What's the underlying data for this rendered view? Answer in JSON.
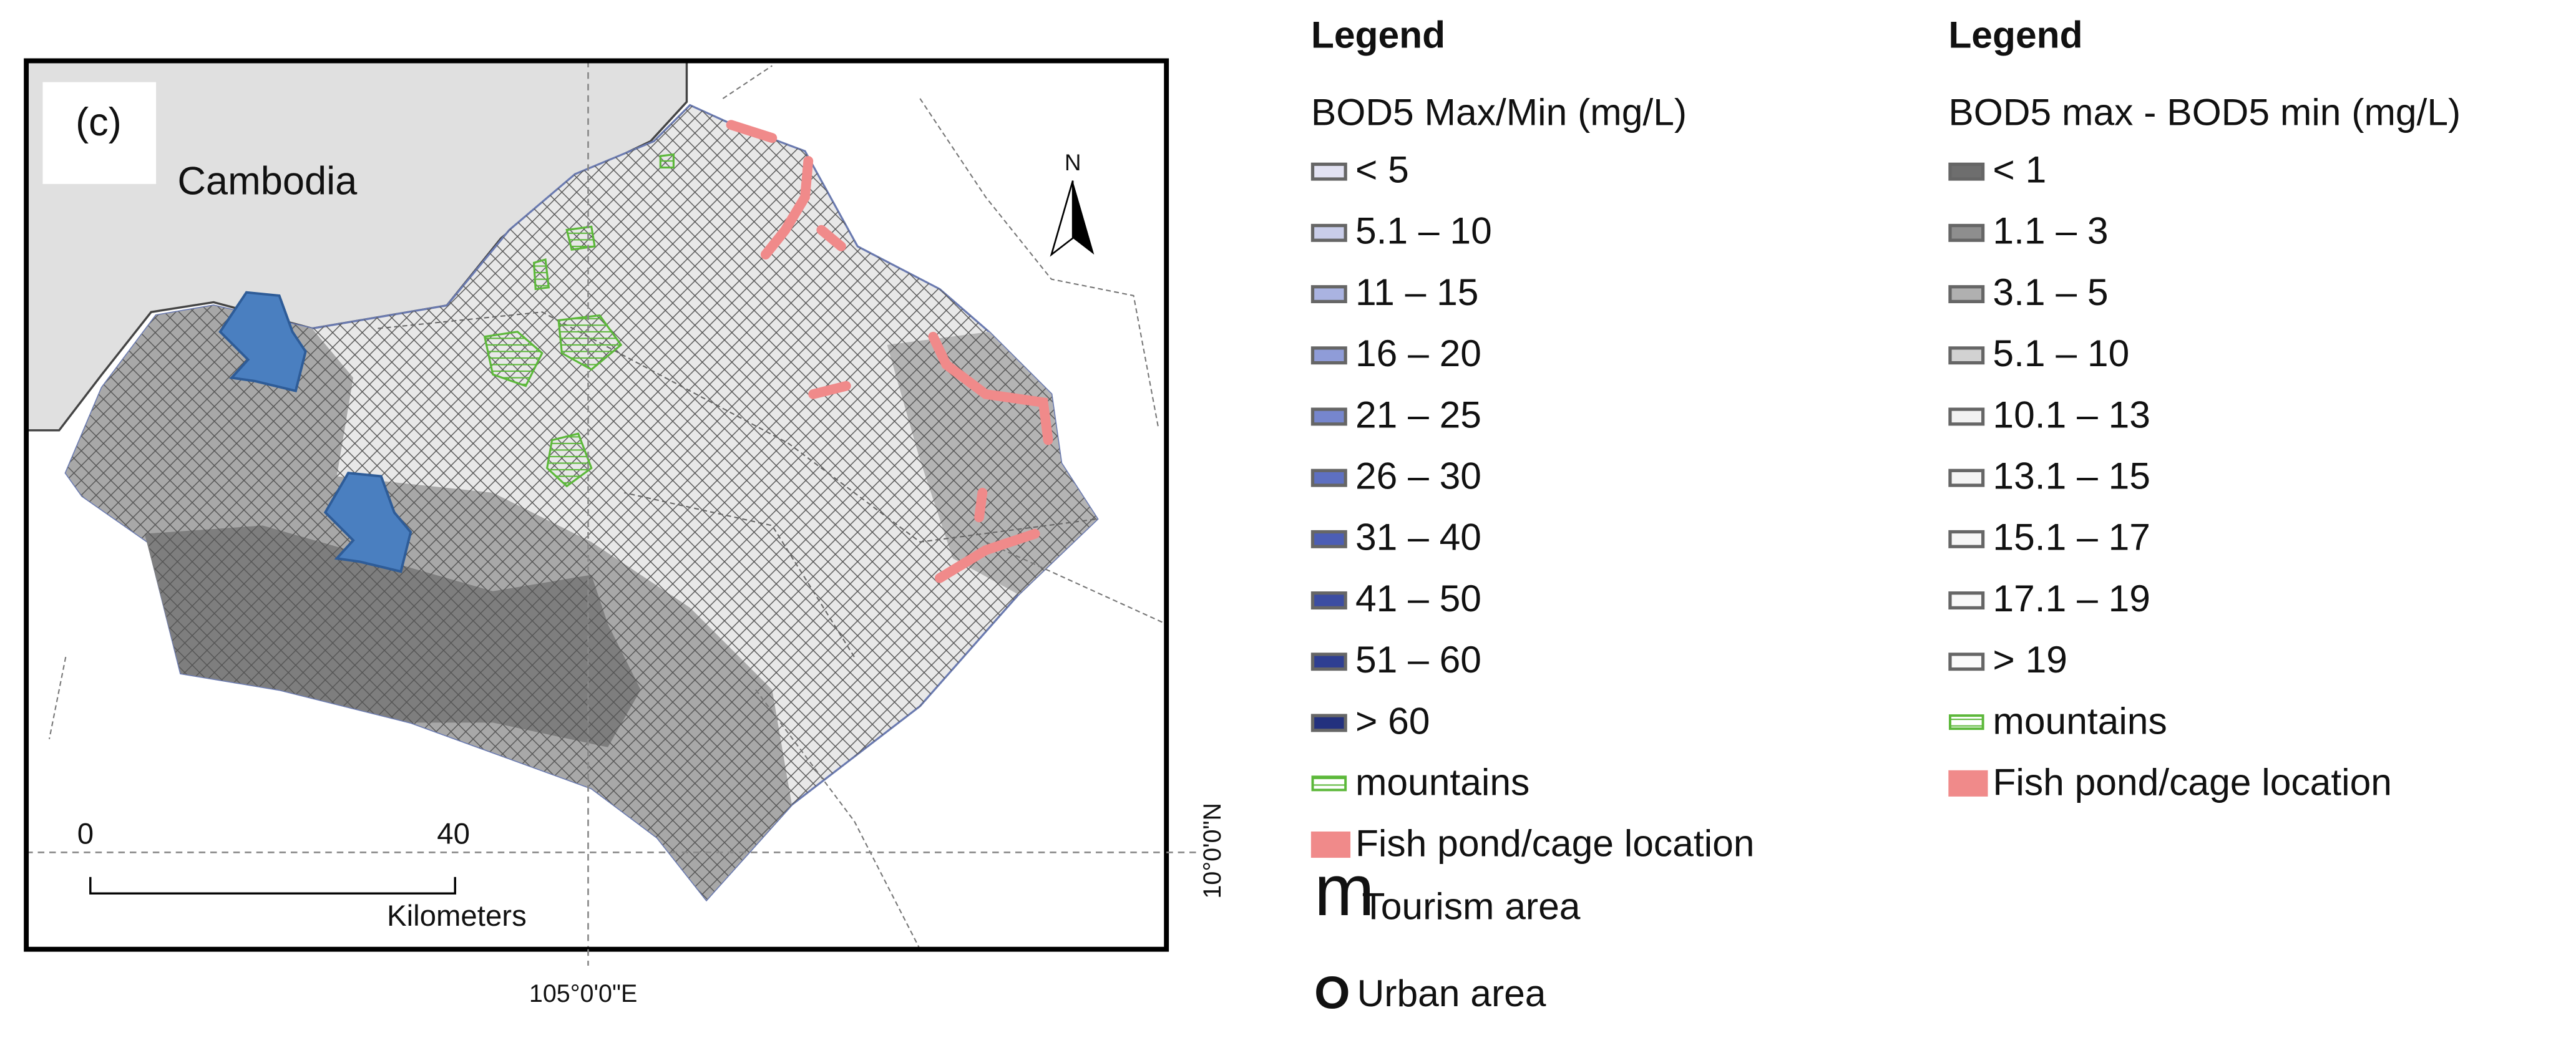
{
  "map": {
    "panel_label": "(c)",
    "country_label": "Cambodia",
    "north_label": "N",
    "scale": {
      "start": "0",
      "end": "40",
      "unit": "Kilometers"
    },
    "latitude_label": "10°0'0\"N",
    "longitude_label": "105°0'0\"E"
  },
  "legend_left": {
    "title": "Legend",
    "subtitle": "BOD5 Max/Min (mg/L)",
    "items": [
      {
        "label": "< 5",
        "color": "#e2e2f2"
      },
      {
        "label": "5.1 – 10",
        "color": "#c9cde9"
      },
      {
        "label": "11 – 15",
        "color": "#aab3e1"
      },
      {
        "label": "16 – 20",
        "color": "#8f9cd8"
      },
      {
        "label": "21 – 25",
        "color": "#7686cd"
      },
      {
        "label": "26 – 30",
        "color": "#5e70c1"
      },
      {
        "label": "31 – 40",
        "color": "#4c5eb5"
      },
      {
        "label": "41 – 50",
        "color": "#3c4da2"
      },
      {
        "label": "51 – 60",
        "color": "#2f3f92"
      },
      {
        "label": "> 60",
        "color": "#23317e"
      },
      {
        "label": "mountains",
        "color": "#5cb83a"
      },
      {
        "label": "Fish pond/cage location",
        "color": "#f08a8a"
      }
    ],
    "symbols": [
      {
        "symbol": "m",
        "label": "Tourism area",
        "color": "#6b4a12"
      },
      {
        "symbol": "O",
        "label": "Urban area",
        "color": "#000000"
      }
    ]
  },
  "legend_right": {
    "title": "Legend",
    "subtitle": "BOD5 max - BOD5 min (mg/L)",
    "items": [
      {
        "label": "< 1",
        "color": "#6e6e6e"
      },
      {
        "label": "1.1 – 3",
        "color": "#8e8e8e"
      },
      {
        "label": "3.1 – 5",
        "color": "#b0b0b0"
      },
      {
        "label": "5.1 – 10",
        "color": "#d2d2d2"
      },
      {
        "label": "10.1 – 13",
        "color": "#f2f2f2"
      },
      {
        "label": "13.1 – 15",
        "color": "#f4f4f4"
      },
      {
        "label": "15.1 – 17",
        "color": "#f6f6f6"
      },
      {
        "label": "17.1 – 19",
        "color": "#f8f8f8"
      },
      {
        "label": "> 19",
        "color": "#fafafa"
      },
      {
        "label": "mountains",
        "color": "#5cb83a"
      },
      {
        "label": "Fish pond/cage location",
        "color": "#f08a8a"
      }
    ]
  }
}
